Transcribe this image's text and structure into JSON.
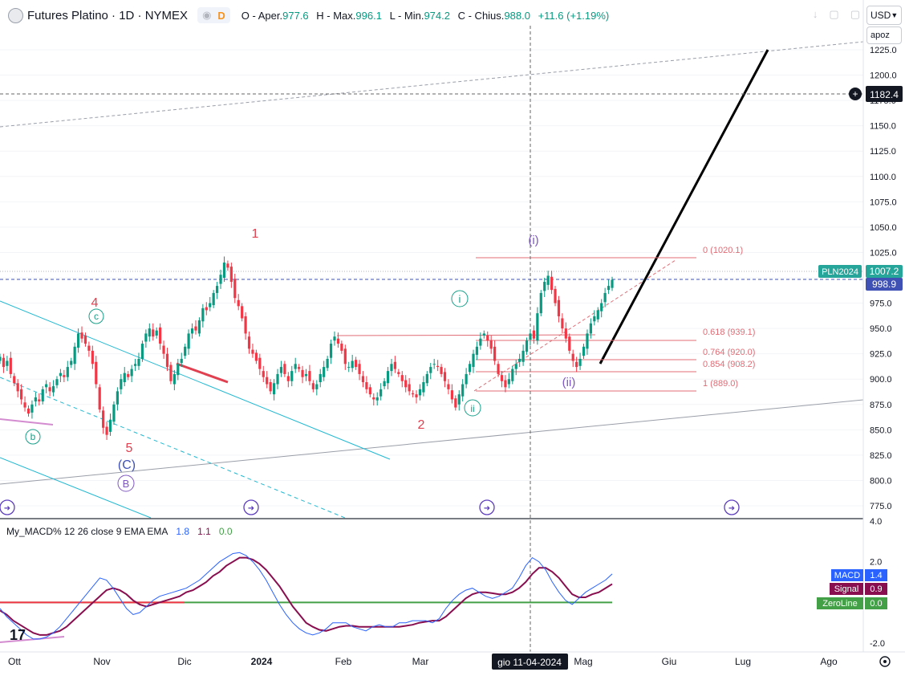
{
  "header": {
    "symbol": "Futures Platino · 1D · NYMEX",
    "badge": "D",
    "ohlc": {
      "open_label": "O - Aper.",
      "open": "977.6",
      "high_label": "H - Max.",
      "high": "996.1",
      "low_label": "L - Min.",
      "low": "974.2",
      "close_label": "C - Chius.",
      "close": "988.0",
      "change": "+11.6 (+1.19%)"
    }
  },
  "currency": "USD",
  "scale_mode": "apoz",
  "price_labels": {
    "crosshair": "1182.4",
    "pln": "PLN2024",
    "pln_value": "1007.2",
    "last": "998.9"
  },
  "colors": {
    "up": "#089981",
    "down": "#f23645",
    "cyan": "#22b8d0",
    "fib": "#e06c75",
    "macd": "#2962ff",
    "signal": "#880e4f",
    "zeroline": "#43a047",
    "wave_red": "#e04050",
    "wave_green": "#18a08a",
    "wave_purple": "#7e57c2",
    "wave_blue": "#3f51b5"
  },
  "fib_labels": [
    "0 (1020.1)",
    "0.618 (939.1)",
    "0.764 (920.0)",
    "0.854 (908.2)",
    "1 (889.0)"
  ],
  "wave_labels": {
    "w1": "1",
    "w2": "2",
    "w4": "4",
    "w5": "5",
    "wc_small": "c",
    "wb_small": "b",
    "wi_green": "i",
    "wii_green": "ii",
    "wi_purple": "(i)",
    "wii_purple": "(ii)",
    "wC": "(C)",
    "wB": "B"
  },
  "macd_header": {
    "name": "My_MACD% 12 26 close 9 EMA EMA",
    "v1": "1.8",
    "v2": "1.1",
    "v3": "0.0"
  },
  "macd_labels": [
    {
      "name": "MACD",
      "value": "1.4"
    },
    {
      "name": "Signal",
      "value": "0.9"
    },
    {
      "name": "ZeroLine",
      "value": "0.0"
    }
  ],
  "x_labels": [
    "Ott",
    "Nov",
    "Dic",
    "2024",
    "Feb",
    "Mar",
    "Mag",
    "Giu",
    "Lug",
    "Ago"
  ],
  "crosshair_date": "gio 11-04-2024",
  "chart_data": {
    "type": "candlestick",
    "title": "Futures Platino · 1D · NYMEX",
    "y_ticks": [
      "1225.0",
      "1200.0",
      "1175.0",
      "1150.0",
      "1125.0",
      "1100.0",
      "1075.0",
      "1050.0",
      "1025.0",
      "1000.0",
      "975.0",
      "950.0",
      "925.0",
      "900.0",
      "875.0",
      "850.0",
      "825.0",
      "800.0",
      "775.0"
    ],
    "ylim": [
      768,
      1242
    ],
    "macd_ticks": [
      "4.0",
      "2.0",
      "-2.0"
    ],
    "macd_ylim": [
      -2.6,
      4.0
    ],
    "closes": [
      922,
      912,
      918,
      905,
      896,
      888,
      880,
      872,
      866,
      875,
      882,
      878,
      890,
      895,
      888,
      893,
      900,
      906,
      902,
      912,
      918,
      932,
      945,
      940,
      935,
      928,
      915,
      895,
      870,
      852,
      845,
      860,
      875,
      888,
      900,
      906,
      902,
      910,
      915,
      920,
      935,
      945,
      950,
      942,
      948,
      935,
      925,
      912,
      898,
      905,
      915,
      920,
      932,
      945,
      950,
      948,
      958,
      970,
      968,
      975,
      985,
      992,
      1003,
      1015,
      1010,
      996,
      980,
      972,
      960,
      945,
      930,
      925,
      918,
      910,
      902,
      895,
      888,
      896,
      905,
      912,
      905,
      898,
      908,
      915,
      910,
      902,
      905,
      898,
      890,
      895,
      905,
      912,
      920,
      935,
      942,
      935,
      928,
      915,
      912,
      918,
      912,
      905,
      897,
      890,
      885,
      880,
      882,
      890,
      898,
      908,
      915,
      910,
      905,
      898,
      892,
      888,
      885,
      882,
      890,
      897,
      905,
      912,
      915,
      912,
      905,
      898,
      890,
      880,
      872,
      885,
      895,
      905,
      915,
      925,
      932,
      940,
      945,
      938,
      930,
      918,
      905,
      898,
      892,
      900,
      910,
      915,
      920,
      928,
      938,
      945,
      940,
      965,
      985,
      996,
      1002,
      988,
      975,
      962,
      950,
      940,
      928,
      918,
      912,
      920,
      932,
      945,
      955,
      962,
      968,
      975,
      985,
      992,
      998
    ],
    "macd": [
      -0.3,
      -0.7,
      -1.0,
      -1.3,
      -1.6,
      -1.8,
      -1.8,
      -1.7,
      -1.5,
      -1.2,
      -0.8,
      -0.4,
      0.0,
      0.4,
      0.8,
      1.2,
      1.1,
      0.7,
      0.2,
      -0.3,
      -0.6,
      -0.5,
      -0.2,
      0.1,
      0.3,
      0.4,
      0.5,
      0.6,
      0.7,
      0.9,
      1.1,
      1.4,
      1.7,
      2.0,
      2.2,
      2.4,
      2.45,
      2.3,
      2.0,
      1.6,
      1.1,
      0.5,
      -0.1,
      -0.6,
      -1.0,
      -1.3,
      -1.5,
      -1.6,
      -1.5,
      -1.3,
      -1.0,
      -1.0,
      -1.0,
      -1.2,
      -1.3,
      -1.4,
      -1.2,
      -1.1,
      -1.2,
      -1.2,
      -1.0,
      -1.0,
      -0.9,
      -0.9,
      -0.9,
      -1.0,
      -0.8,
      -0.3,
      0.1,
      0.4,
      0.6,
      0.7,
      0.5,
      0.3,
      0.2,
      0.3,
      0.5,
      0.7,
      1.2,
      1.8,
      2.2,
      2.0,
      1.6,
      1.0,
      0.5,
      0.1,
      -0.1,
      0.2,
      0.5,
      0.7,
      0.9,
      1.1,
      1.4
    ],
    "signal": [
      -0.4,
      -0.6,
      -0.9,
      -1.1,
      -1.3,
      -1.5,
      -1.6,
      -1.6,
      -1.5,
      -1.4,
      -1.2,
      -0.9,
      -0.6,
      -0.3,
      0.0,
      0.3,
      0.6,
      0.7,
      0.6,
      0.4,
      0.1,
      -0.1,
      -0.2,
      -0.1,
      0.0,
      0.1,
      0.2,
      0.3,
      0.5,
      0.6,
      0.8,
      1.0,
      1.3,
      1.5,
      1.8,
      2.0,
      2.2,
      2.2,
      2.1,
      1.9,
      1.6,
      1.2,
      0.8,
      0.3,
      -0.2,
      -0.6,
      -1.0,
      -1.2,
      -1.35,
      -1.4,
      -1.3,
      -1.2,
      -1.15,
      -1.15,
      -1.2,
      -1.2,
      -1.2,
      -1.2,
      -1.2,
      -1.2,
      -1.2,
      -1.15,
      -1.1,
      -1.0,
      -0.95,
      -0.9,
      -0.9,
      -0.7,
      -0.4,
      -0.1,
      0.2,
      0.4,
      0.5,
      0.5,
      0.45,
      0.4,
      0.4,
      0.5,
      0.7,
      1.0,
      1.4,
      1.7,
      1.7,
      1.5,
      1.2,
      0.8,
      0.4,
      0.25,
      0.25,
      0.4,
      0.5,
      0.7,
      0.9
    ]
  }
}
